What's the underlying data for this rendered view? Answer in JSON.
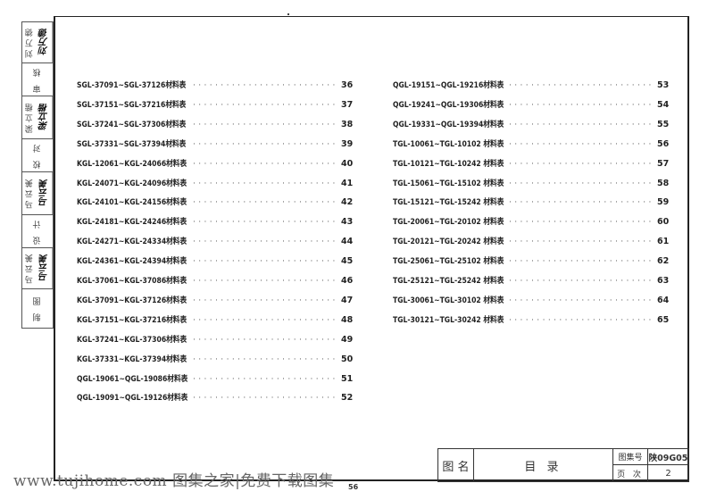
{
  "stamp": [
    {
      "label": "刘万德",
      "signature": "刘万德"
    },
    {
      "label": "审 核"
    },
    {
      "label": "梁立楷",
      "signature": "梁立楷"
    },
    {
      "label": "校 对"
    },
    {
      "label": "马云美",
      "signature": "马云美"
    },
    {
      "label": "设 计"
    },
    {
      "label": "马云美",
      "signature": "马云美"
    },
    {
      "label": "制 图"
    }
  ],
  "toc_left": [
    {
      "title": "SGL-37091~SGL-37126材料表",
      "page": "36"
    },
    {
      "title": "SGL-37151~SGL-37216材料表",
      "page": "37"
    },
    {
      "title": "SGL-37241~SGL-37306材料表",
      "page": "38"
    },
    {
      "title": "SGL-37331~SGL-37394材料表",
      "page": "39"
    },
    {
      "title": "KGL-12061~KGL-24066材料表",
      "page": "40"
    },
    {
      "title": "KGL-24071~KGL-24096材料表",
      "page": "41"
    },
    {
      "title": "KGL-24101~KGL-24156材料表",
      "page": "42"
    },
    {
      "title": "KGL-24181~KGL-24246材料表",
      "page": "43"
    },
    {
      "title": "KGL-24271~KGL-24334材料表",
      "page": "44"
    },
    {
      "title": "KGL-24361~KGL-24394材料表",
      "page": "45"
    },
    {
      "title": "KGL-37061~KGL-37086材料表",
      "page": "46"
    },
    {
      "title": "KGL-37091~KGL-37126材料表",
      "page": "47"
    },
    {
      "title": "KGL-37151~KGL-37216材料表",
      "page": "48"
    },
    {
      "title": "KGL-37241~KGL-37306材料表",
      "page": "49"
    },
    {
      "title": "KGL-37331~KGL-37394材料表",
      "page": "50"
    },
    {
      "title": "QGL-19061~QGL-19086材料表",
      "page": "51"
    },
    {
      "title": "QGL-19091~QGL-19126材料表",
      "page": "52"
    }
  ],
  "toc_right": [
    {
      "title": "QGL-19151~QGL-19216材料表",
      "page": "53"
    },
    {
      "title": "QGL-19241~QGL-19306材料表",
      "page": "54"
    },
    {
      "title": "QGL-19331~QGL-19394材料表",
      "page": "55"
    },
    {
      "title": "TGL-10061~TGL-10102 材料表",
      "page": "56"
    },
    {
      "title": "TGL-10121~TGL-10242 材料表",
      "page": "57"
    },
    {
      "title": "TGL-15061~TGL-15102 材料表",
      "page": "58"
    },
    {
      "title": "TGL-15121~TGL-15242 材料表",
      "page": "59"
    },
    {
      "title": "TGL-20061~TGL-20102 材料表",
      "page": "60"
    },
    {
      "title": "TGL-20121~TGL-20242 材料表",
      "page": "61"
    },
    {
      "title": "TGL-25061~TGL-25102 材料表",
      "page": "62"
    },
    {
      "title": "TGL-25121~TGL-25242 材料表",
      "page": "63"
    },
    {
      "title": "TGL-30061~TGL-30102 材料表",
      "page": "64"
    },
    {
      "title": "TGL-30121~TGL-30242 材料表",
      "page": "65"
    }
  ],
  "leader": "··························",
  "title_block": {
    "name_label": "图 名",
    "name": "目 录",
    "atlas_label": "图集号",
    "atlas_no": "陕09G05",
    "page_label": "页 次",
    "page_no": "2"
  },
  "watermark": "www.tujihome.com 图集之家|免费下载图集",
  "sheet_number": "56"
}
